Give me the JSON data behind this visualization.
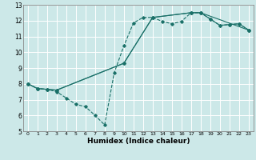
{
  "xlabel": "Humidex (Indice chaleur)",
  "bg_color": "#cce8e8",
  "grid_color": "#ffffff",
  "line_color": "#1a7068",
  "xlim": [
    -0.5,
    23.5
  ],
  "ylim": [
    5,
    13
  ],
  "xticks": [
    0,
    1,
    2,
    3,
    4,
    5,
    6,
    7,
    8,
    9,
    10,
    11,
    12,
    13,
    14,
    15,
    16,
    17,
    18,
    19,
    20,
    21,
    22,
    23
  ],
  "yticks": [
    5,
    6,
    7,
    8,
    9,
    10,
    11,
    12,
    13
  ],
  "line1_x": [
    0,
    1,
    2,
    3,
    4,
    5,
    6,
    7,
    8,
    9,
    10,
    11,
    12,
    13,
    14,
    15,
    16,
    17,
    18,
    19,
    20,
    21,
    22,
    23
  ],
  "line1_y": [
    8.0,
    7.7,
    7.65,
    7.5,
    7.1,
    6.7,
    6.55,
    6.0,
    5.4,
    8.7,
    10.4,
    11.85,
    12.2,
    12.2,
    11.95,
    11.8,
    11.95,
    12.5,
    12.5,
    12.1,
    11.7,
    11.75,
    11.8,
    11.4
  ],
  "line2_x": [
    0,
    1,
    2,
    3,
    10,
    13,
    17,
    18,
    19,
    20,
    21,
    22,
    23
  ],
  "line2_y": [
    8.0,
    7.7,
    7.65,
    7.6,
    9.3,
    12.2,
    12.5,
    12.5,
    12.1,
    11.7,
    11.75,
    11.8,
    11.4
  ],
  "line3_x": [
    0,
    1,
    2,
    3,
    10,
    13,
    17,
    18,
    23
  ],
  "line3_y": [
    8.0,
    7.7,
    7.65,
    7.6,
    9.3,
    12.2,
    12.5,
    12.5,
    11.4
  ]
}
